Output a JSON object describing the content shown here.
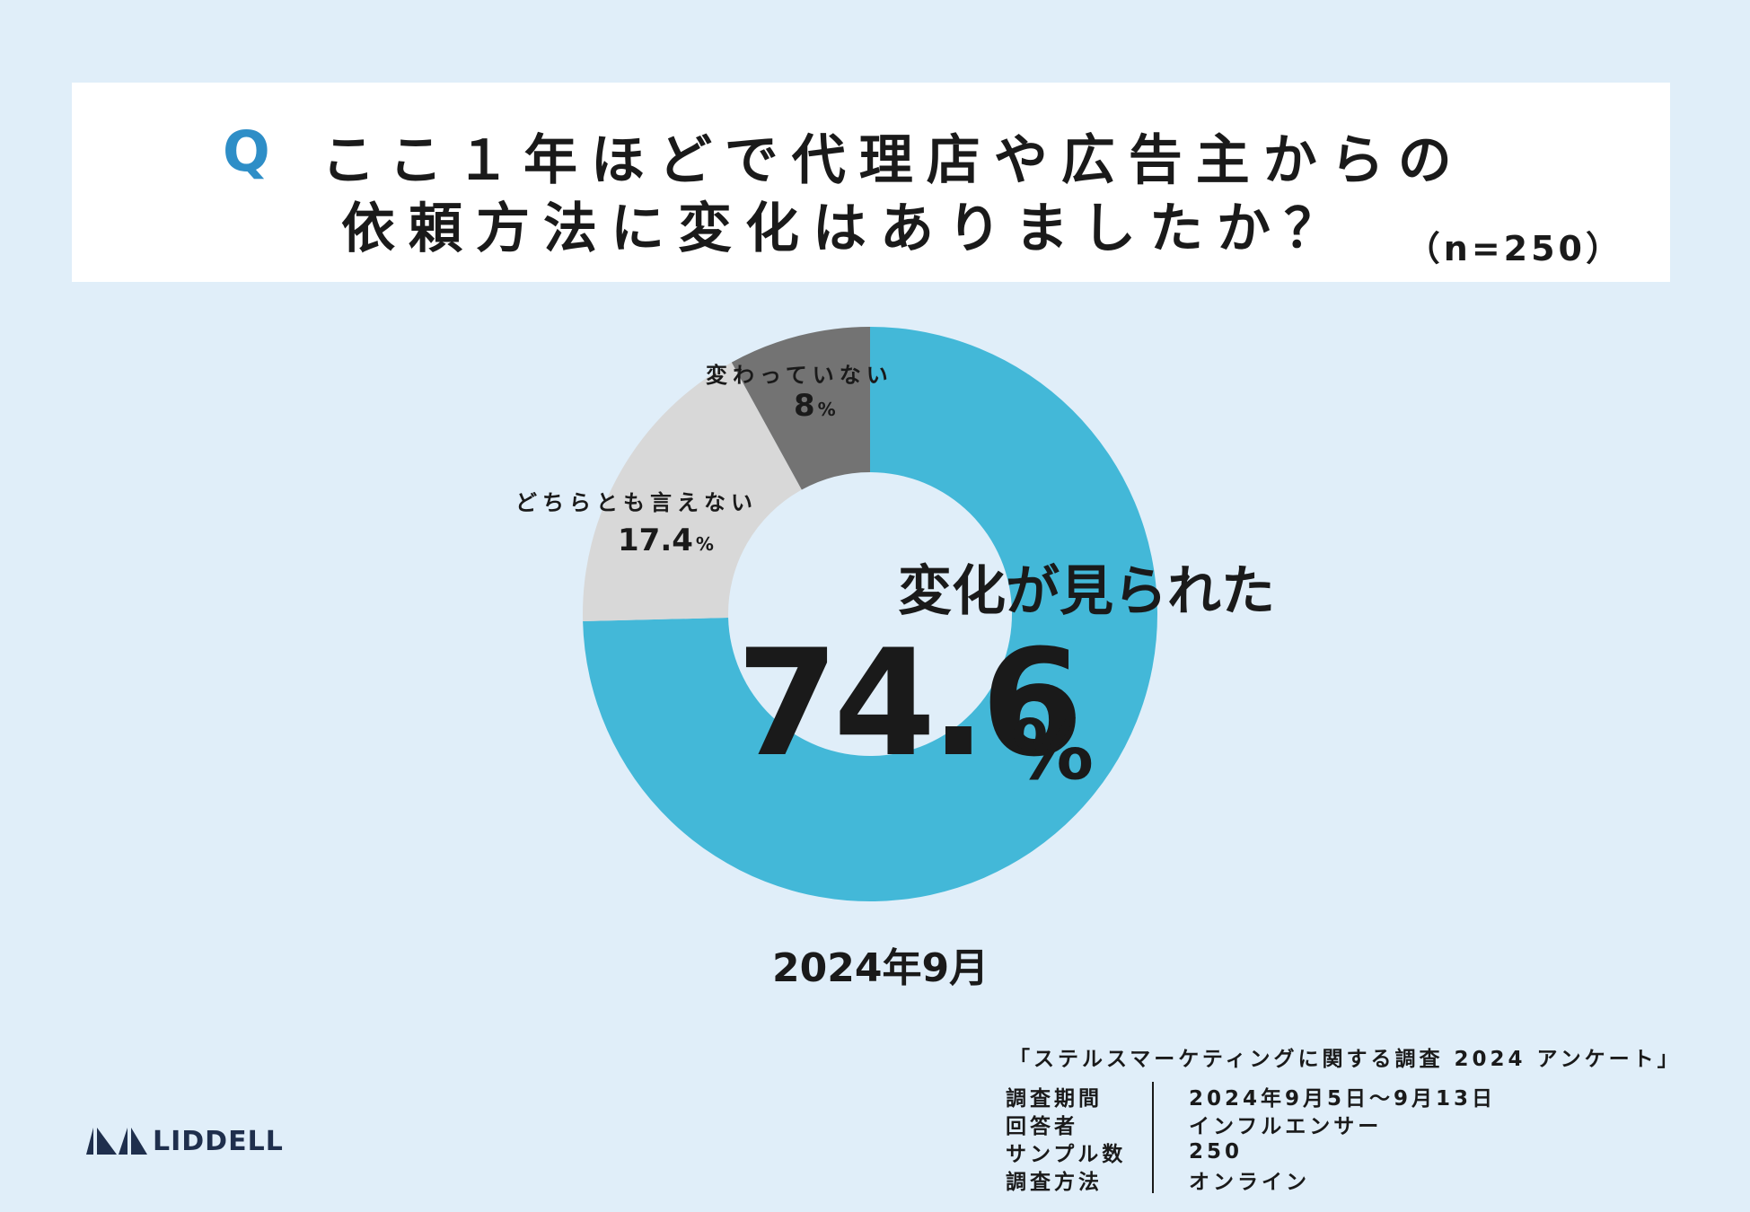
{
  "question": {
    "mark": "Q",
    "line1": "ここ１年ほどで代理店や広告主からの",
    "line2": "依頼方法に変化はありましたか？",
    "sample": "（n=250）"
  },
  "chart_data": {
    "type": "pie",
    "categories": [
      "変化が見られた",
      "どちらとも言えない",
      "変わっていない"
    ],
    "values": [
      74.6,
      17.4,
      8
    ],
    "colors": [
      "#43b8d8",
      "#d8d8d8",
      "#737373"
    ],
    "unit": "%"
  },
  "labels": {
    "changed": {
      "name": "変化が見られた",
      "value": "74.6",
      "unit": "%"
    },
    "neither": {
      "name": "どちらとも言えない",
      "value": "17.4",
      "unit": "%"
    },
    "unchanged": {
      "name": "変わっていない",
      "value": "8",
      "unit": "%"
    }
  },
  "date": "2024年9月",
  "survey": {
    "title": "「ステルスマーケティングに関する調査 2024 アンケート」",
    "rows": [
      {
        "key": "調査期間",
        "value": "2024年9月5日〜9月13日"
      },
      {
        "key": "回答者",
        "value": "インフルエンサー"
      },
      {
        "key": "サンプル数",
        "value": "250"
      },
      {
        "key": "調査方法",
        "value": "オンライン"
      }
    ]
  },
  "logo": {
    "text": "LIDDELL"
  }
}
